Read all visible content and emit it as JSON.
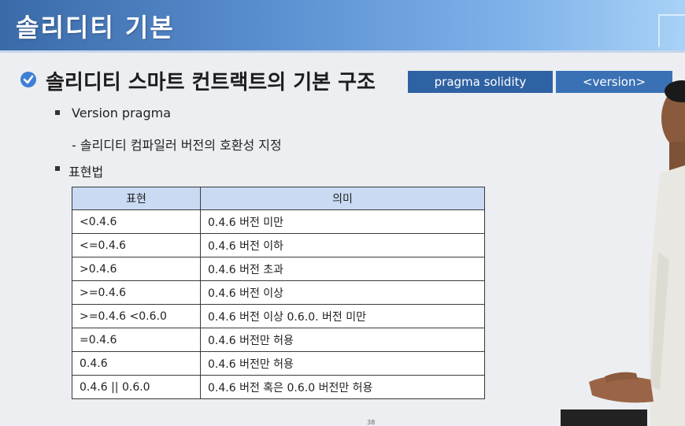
{
  "slide": {
    "title": "솔리디티 기본",
    "heading": "솔리디티 스마트 컨트랙트의 기본 구조",
    "tags": [
      "pragma solidity",
      "<version>"
    ],
    "bullets": [
      {
        "text": "Version pragma"
      },
      {
        "text": "- 솔리디티 컴파일러 버전의 호환성 지정"
      },
      {
        "text": "표현법"
      }
    ],
    "page_number": "38"
  },
  "table": {
    "headers": [
      "표현",
      "의미"
    ],
    "rows": [
      [
        "<0.4.6",
        "0.4.6 버전 미만"
      ],
      [
        "<=0.4.6",
        "0.4.6 버전 이하"
      ],
      [
        ">0.4.6",
        "0.4.6 버전 초과"
      ],
      [
        ">=0.4.6",
        "0.4.6 버전 이상"
      ],
      [
        ">=0.4.6 <0.6.0",
        "0.4.6 버전 이상 0.6.0. 버전 미만"
      ],
      [
        "=0.4.6",
        "0.4.6 버전만 허용"
      ],
      [
        "0.4.6",
        "0.4.6 버전만 허용"
      ],
      [
        "0.4.6 || 0.6.0",
        "0.4.6 버전 혹은 0.6.0 버전만 허용"
      ]
    ]
  },
  "colors": {
    "header_bar": "#4a7cc0",
    "tag_bg": "#2f62a3",
    "table_header_bg": "#c9daf2",
    "check_icon": "#3f7fd6"
  },
  "icons": {
    "heading_marker": "check-circle-icon",
    "bullet_marker": "square-bullet-icon"
  }
}
